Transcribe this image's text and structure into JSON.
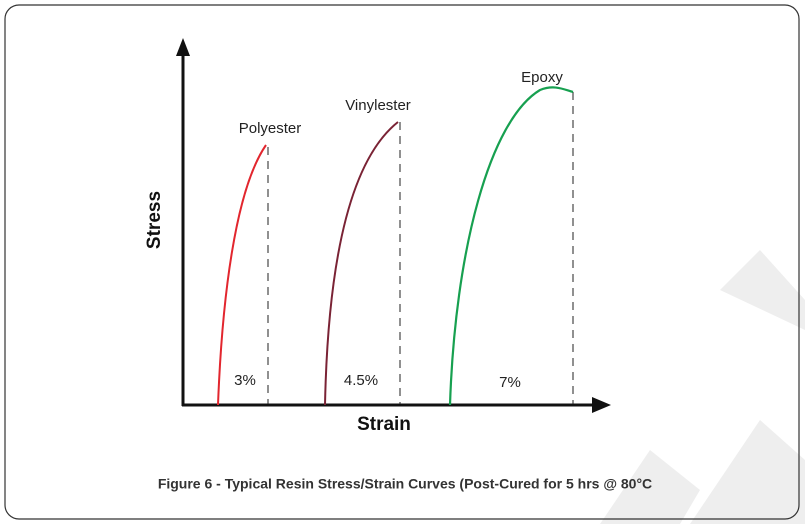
{
  "axes": {
    "y_label": "Stress",
    "x_label": "Strain"
  },
  "curves": [
    {
      "label": "Polyester",
      "strain_label": "3%"
    },
    {
      "label": "Vinylester",
      "strain_label": "4.5%"
    },
    {
      "label": "Epoxy",
      "strain_label": "7%"
    }
  ],
  "caption": "Figure 6 - Typical Resin Stress/Strain Curves (Post-Cured for 5 hrs @ 80°C"
}
